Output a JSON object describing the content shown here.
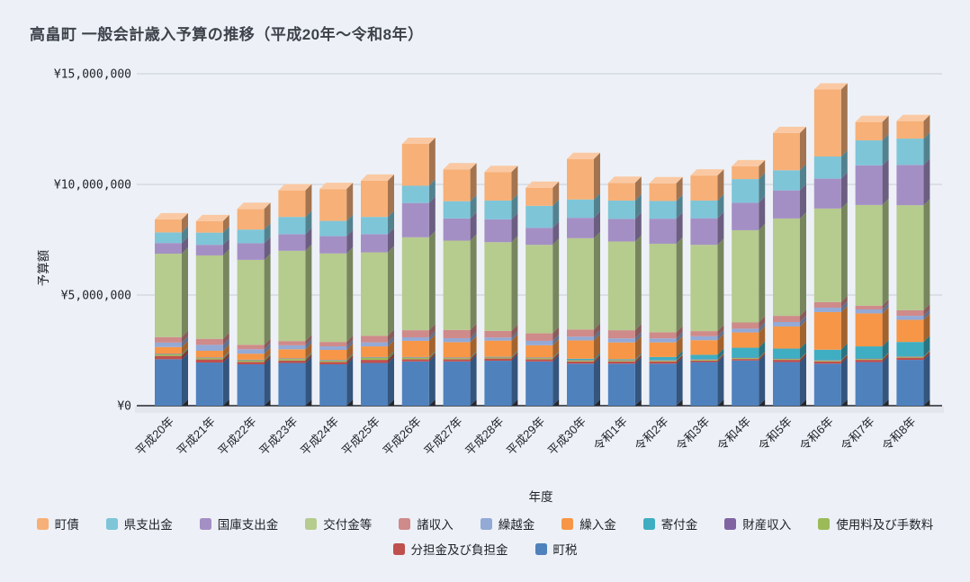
{
  "page": {
    "background": "#EDF1F7"
  },
  "chart_data": {
    "type": "bar",
    "stacked": true,
    "pseudo_3d": true,
    "grid": true,
    "legend_position": "bottom",
    "title": "高畠町 一般会計歳入予算の推移（平成20年～令和8年）",
    "xlabel": "年度",
    "ylabel": "予算額",
    "ylim": [
      0,
      15000000
    ],
    "yticks": [
      {
        "value": 0,
        "label": "¥0"
      },
      {
        "value": 5000000,
        "label": "¥5,000,000"
      },
      {
        "value": 10000000,
        "label": "¥10,000,000"
      },
      {
        "value": 15000000,
        "label": "¥15,000,000"
      }
    ],
    "categories": [
      "平成20年",
      "平成21年",
      "平成22年",
      "平成23年",
      "平成24年",
      "平成25年",
      "平成26年",
      "平成27年",
      "平成28年",
      "平成29年",
      "平成30年",
      "令和1年",
      "令和2年",
      "令和3年",
      "令和4年",
      "令和5年",
      "令和6年",
      "令和7年",
      "令和8年"
    ],
    "series": [
      {
        "name": "町税",
        "color": "#4F81BD",
        "values": [
          2100000,
          1950000,
          1870000,
          1930000,
          1870000,
          1930000,
          2000000,
          2000000,
          2030000,
          2000000,
          1900000,
          1900000,
          1900000,
          1970000,
          2040000,
          1970000,
          1900000,
          1970000,
          2070000
        ]
      },
      {
        "name": "分担金及び負担金",
        "color": "#C0504D",
        "values": [
          150000,
          140000,
          110000,
          110000,
          110000,
          140000,
          100000,
          100000,
          100000,
          100000,
          100000,
          100000,
          100000,
          70000,
          70000,
          100000,
          100000,
          100000,
          100000
        ]
      },
      {
        "name": "使用料及び手数料",
        "color": "#9BBB59",
        "values": [
          70000,
          60000,
          70000,
          70000,
          60000,
          100000,
          70000,
          50000,
          50000,
          50000,
          50000,
          50000,
          40000,
          40000,
          40000,
          40000,
          40000,
          40000,
          40000
        ]
      },
      {
        "name": "財産収入",
        "color": "#8064A2",
        "values": [
          20000,
          20000,
          20000,
          20000,
          20000,
          20000,
          20000,
          20000,
          20000,
          20000,
          20000,
          20000,
          20000,
          20000,
          20000,
          20000,
          20000,
          20000,
          20000
        ]
      },
      {
        "name": "寄付金",
        "color": "#3FAEC2",
        "values": [
          10000,
          10000,
          10000,
          10000,
          10000,
          10000,
          10000,
          10000,
          10000,
          10000,
          50000,
          30000,
          140000,
          200000,
          450000,
          450000,
          470000,
          550000,
          650000
        ]
      },
      {
        "name": "繰入金",
        "color": "#F79646",
        "values": [
          300000,
          300000,
          270000,
          410000,
          450000,
          480000,
          730000,
          690000,
          730000,
          550000,
          830000,
          760000,
          660000,
          660000,
          690000,
          1000000,
          1700000,
          1490000,
          1000000
        ]
      },
      {
        "name": "繰越金",
        "color": "#93A9D6",
        "values": [
          200000,
          270000,
          200000,
          180000,
          160000,
          180000,
          160000,
          180000,
          140000,
          200000,
          170000,
          180000,
          180000,
          180000,
          170000,
          200000,
          200000,
          180000,
          180000
        ]
      },
      {
        "name": "諸収入",
        "color": "#CF8A8A",
        "values": [
          250000,
          270000,
          200000,
          190000,
          200000,
          300000,
          320000,
          370000,
          300000,
          340000,
          320000,
          370000,
          280000,
          230000,
          280000,
          280000,
          250000,
          170000,
          250000
        ]
      },
      {
        "name": "交付金等",
        "color": "#B6CB8E",
        "values": [
          3770000,
          3770000,
          3840000,
          4080000,
          4000000,
          3770000,
          4200000,
          4040000,
          4010000,
          4000000,
          4130000,
          4010000,
          4000000,
          3900000,
          4170000,
          4400000,
          4230000,
          4550000,
          4750000
        ]
      },
      {
        "name": "国庫支出金",
        "color": "#A48FC4",
        "values": [
          480000,
          480000,
          750000,
          750000,
          780000,
          820000,
          1550000,
          1000000,
          1030000,
          770000,
          920000,
          1020000,
          1130000,
          1200000,
          1240000,
          1270000,
          1350000,
          1790000,
          1820000
        ]
      },
      {
        "name": "県支出金",
        "color": "#7EC5D8",
        "values": [
          480000,
          550000,
          620000,
          780000,
          690000,
          780000,
          780000,
          780000,
          850000,
          990000,
          830000,
          830000,
          800000,
          800000,
          1070000,
          910000,
          1000000,
          1130000,
          1190000
        ]
      },
      {
        "name": "町債",
        "color": "#F7B077",
        "values": [
          590000,
          520000,
          930000,
          1200000,
          1440000,
          1640000,
          1890000,
          1440000,
          1290000,
          820000,
          1830000,
          800000,
          800000,
          1130000,
          580000,
          1680000,
          3030000,
          830000,
          790000
        ]
      }
    ],
    "legend_rows": [
      [
        "町債",
        "県支出金",
        "国庫支出金",
        "交付金等",
        "諸収入",
        "繰越金",
        "繰入金",
        "寄付金",
        "財産収入",
        "使用料及び手数料"
      ],
      [
        "分担金及び負担金",
        "町税"
      ]
    ],
    "colors": {
      "background": "#EDF1F7",
      "gridline": "#C8CDD6",
      "axis_line": "#23262B",
      "floor_shadow": "#E3E7ED",
      "text": "#1F2328",
      "title": "#3E434B"
    }
  }
}
